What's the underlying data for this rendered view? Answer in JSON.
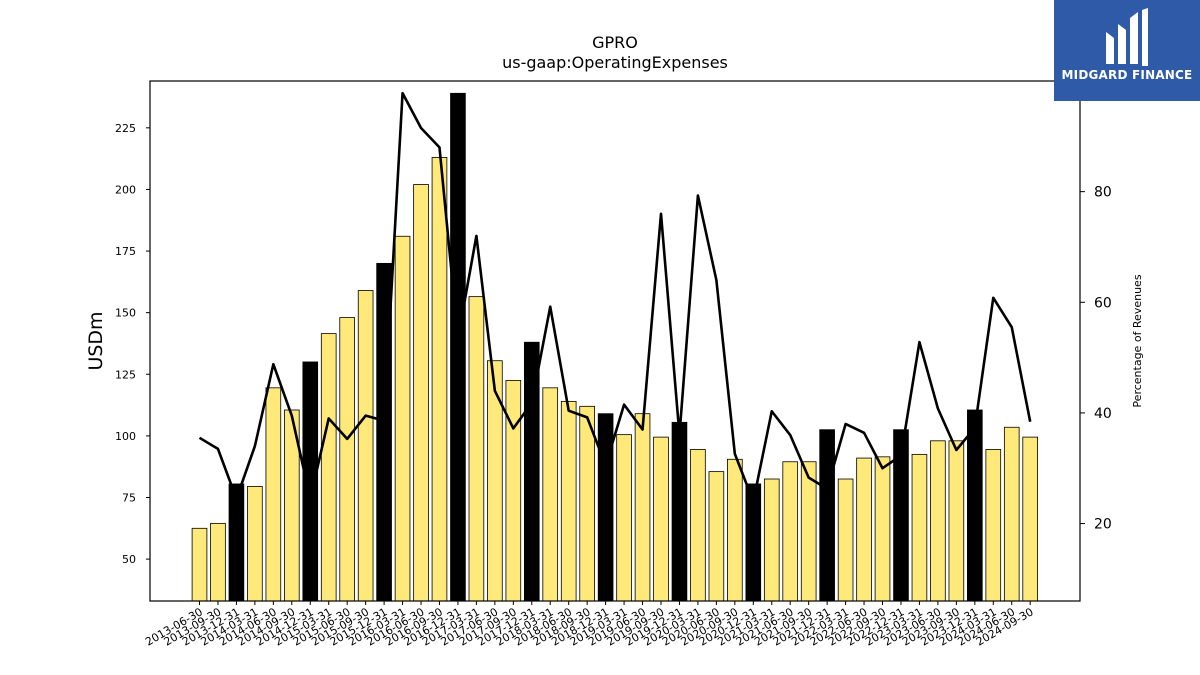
{
  "logo": {
    "text": "MIDGARD FINANCE"
  },
  "colors": {
    "bar_yellow": "#FFE97A",
    "bar_black": "#000000",
    "line": "#000000",
    "logo_bg": "#2E5AA8"
  },
  "chart_data": {
    "type": "bar",
    "title": "GPRO",
    "subtitle": "us-gaap:OperatingExpenses",
    "ylabel": "USDm",
    "y2label": "Percentage of Revenues",
    "ylim": [
      33,
      244
    ],
    "y2lim": [
      6,
      100
    ],
    "yticks": [
      50,
      75,
      100,
      125,
      150,
      175,
      200,
      225
    ],
    "y2ticks": [
      20,
      40,
      60,
      80
    ],
    "categories": [
      "2013-06-30",
      "2013-09-30",
      "2013-12-31",
      "2014-03-31",
      "2014-06-30",
      "2014-09-30",
      "2014-12-31",
      "2015-03-31",
      "2015-06-30",
      "2015-09-30",
      "2015-12-31",
      "2016-03-31",
      "2016-06-30",
      "2016-09-30",
      "2016-12-31",
      "2017-03-31",
      "2017-06-30",
      "2017-09-30",
      "2017-12-31",
      "2018-03-31",
      "2018-06-30",
      "2018-09-30",
      "2018-12-31",
      "2019-03-31",
      "2019-06-30",
      "2019-09-30",
      "2019-12-31",
      "2020-03-31",
      "2020-06-30",
      "2020-09-30",
      "2020-12-31",
      "2021-03-31",
      "2021-06-30",
      "2021-09-30",
      "2021-12-31",
      "2022-03-31",
      "2022-06-30",
      "2022-09-30",
      "2022-12-31",
      "2023-03-31",
      "2023-06-30",
      "2023-09-30",
      "2023-12-31",
      "2024-03-31",
      "2024-06-30",
      "2024-09-30"
    ],
    "series": [
      {
        "name": "Operating Expenses",
        "type": "bar",
        "axis": "left",
        "values": [
          62.5,
          64.5,
          80.5,
          79.5,
          119.5,
          110.5,
          130,
          141.5,
          148,
          159,
          170,
          181,
          202,
          213,
          239,
          156.5,
          130.5,
          122.5,
          138,
          119.5,
          114,
          112,
          109,
          100.5,
          109,
          99.5,
          105.5,
          94.5,
          85.5,
          90.5,
          80.5,
          82.5,
          89.5,
          89.5,
          102.5,
          82.5,
          91,
          91.5,
          102.5,
          92.5,
          98,
          98,
          110.5,
          94.5,
          103.5,
          99.5
        ],
        "highlight": [
          false,
          false,
          true,
          false,
          false,
          false,
          true,
          false,
          false,
          false,
          true,
          false,
          false,
          false,
          true,
          false,
          false,
          false,
          true,
          false,
          false,
          false,
          true,
          false,
          false,
          false,
          true,
          false,
          false,
          false,
          true,
          false,
          false,
          false,
          true,
          false,
          false,
          false,
          true,
          false,
          false,
          false,
          true,
          false,
          false,
          false
        ]
      },
      {
        "name": "Percentage of Revenues",
        "type": "line",
        "axis": "right",
        "values": [
          35.5,
          33.5,
          24.5,
          34,
          48.8,
          39.5,
          24.5,
          39,
          35.3,
          39.5,
          38.6,
          97.8,
          91.5,
          88,
          53.5,
          72,
          44,
          37.2,
          41.8,
          59.2,
          40.4,
          39.2,
          30.5,
          41.5,
          37,
          76,
          36,
          79.3,
          64,
          32.6,
          24,
          40.3,
          36,
          28.3,
          26.3,
          38,
          36.4,
          30,
          32.3,
          52.8,
          40.8,
          33.3,
          37.3,
          60.8,
          55.5,
          38.4
        ]
      }
    ]
  }
}
